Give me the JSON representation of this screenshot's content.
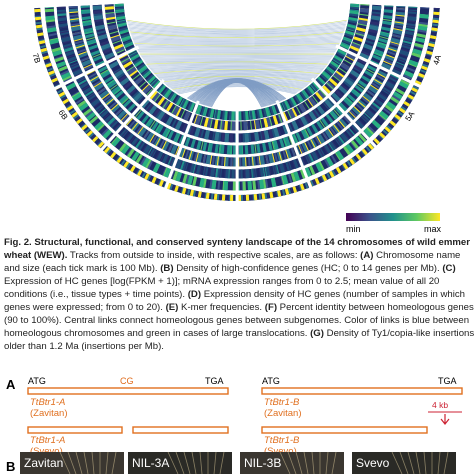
{
  "circos": {
    "chromosome_labels": [
      "4A",
      "5A",
      "6B",
      "7B"
    ],
    "scale_min": "min",
    "scale_max": "max"
  },
  "caption": {
    "parts": [
      {
        "text": "Fig. 2. Structural, functional, and conserved synteny landscape of the 14 chromosomes of wild emmer wheat (WEW).",
        "bold": true
      },
      {
        "text": " Tracks from outside to inside, with respective scales, are as follows: ",
        "bold": false
      },
      {
        "text": "(A)",
        "bold": true
      },
      {
        "text": " Chromosome name and size (each tick mark is 100 Mb). ",
        "bold": false
      },
      {
        "text": "(B)",
        "bold": true
      },
      {
        "text": " Density of high-confidence genes (HC; 0 to 14 genes per Mb). ",
        "bold": false
      },
      {
        "text": "(C)",
        "bold": true
      },
      {
        "text": " Expression of HC genes [log(FPKM + 1)]; mRNA expression ranges from 0 to 2.5; mean value of all 20 conditions (i.e., tissue types + time points). ",
        "bold": false
      },
      {
        "text": "(D)",
        "bold": true
      },
      {
        "text": " Expression density of HC genes (number of samples in which genes were expressed; from 0 to 20). ",
        "bold": false
      },
      {
        "text": "(E)",
        "bold": true
      },
      {
        "text": " K-mer frequencies. ",
        "bold": false
      },
      {
        "text": "(F)",
        "bold": true
      },
      {
        "text": " Percent identity between homeologous genes (90 to 100%). Central links connect homeologous genes between subgenomes. Color of links is blue between homeologous chromosomes and green in cases of large translocations. ",
        "bold": false
      },
      {
        "text": "(G)",
        "bold": true
      },
      {
        "text": " Density of Ty1/copia-like insertions older than 1.2 Ma (insertions per Mb).",
        "bold": false
      }
    ]
  },
  "panel_a": {
    "label": "A",
    "left": {
      "start": "ATG",
      "mark": "CG",
      "end": "TGA",
      "top_gene": "TtBtr1-A",
      "top_line": "(Zavitan)",
      "bottom_gene": "TtBtr1-A",
      "bottom_line": "(Svevo)"
    },
    "right": {
      "start": "ATG",
      "end": "TGA",
      "top_gene": "TtBtr1-B",
      "top_line": "(Zavitan)",
      "deletion": "4 kb",
      "bottom_gene": "TtBtr1-B",
      "bottom_line": "(Svevo)"
    }
  },
  "panel_b": {
    "label": "B",
    "photos": [
      "Zavitan",
      "NIL-3A",
      "NIL-3B",
      "Svevo"
    ]
  }
}
